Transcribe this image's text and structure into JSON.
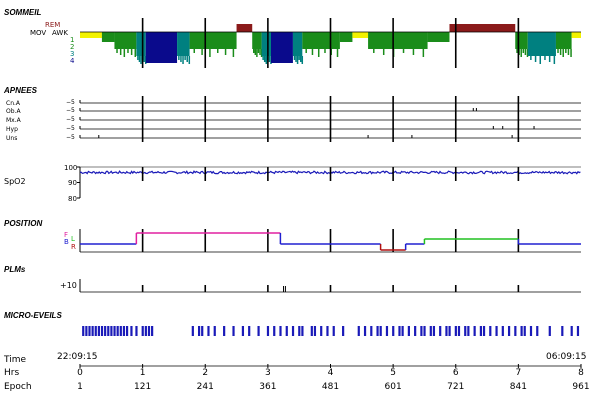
{
  "chart_data": {
    "type": "hypnogram",
    "hours_span": [
      0,
      8
    ],
    "sections": {
      "sleep": {
        "title": "SOMMEIL",
        "stage_labels": [
          "REM",
          "MOV",
          "AWK",
          "1",
          "2",
          "3",
          "4"
        ],
        "stage_colors": {
          "REM": "#8b1a1a",
          "AWK": "#f2f200",
          "1": "#1a8c1a",
          "2": "#1a8c1a",
          "3": "#008080",
          "4": "#0a0a8c"
        },
        "segments": [
          {
            "start": 0.0,
            "end": 0.35,
            "stage": "AWK"
          },
          {
            "start": 0.35,
            "end": 0.55,
            "stage": "1"
          },
          {
            "start": 0.55,
            "end": 0.9,
            "stage": "2"
          },
          {
            "start": 0.9,
            "end": 1.05,
            "stage": "3"
          },
          {
            "start": 1.05,
            "end": 1.55,
            "stage": "4"
          },
          {
            "start": 1.55,
            "end": 1.75,
            "stage": "3"
          },
          {
            "start": 1.75,
            "end": 2.5,
            "stage": "2"
          },
          {
            "start": 2.5,
            "end": 2.75,
            "stage": "REM"
          },
          {
            "start": 2.75,
            "end": 2.9,
            "stage": "2"
          },
          {
            "start": 2.9,
            "end": 3.05,
            "stage": "3"
          },
          {
            "start": 3.05,
            "end": 3.4,
            "stage": "4"
          },
          {
            "start": 3.4,
            "end": 3.55,
            "stage": "3"
          },
          {
            "start": 3.55,
            "end": 4.15,
            "stage": "2"
          },
          {
            "start": 4.15,
            "end": 4.35,
            "stage": "1"
          },
          {
            "start": 4.35,
            "end": 4.6,
            "stage": "AWK"
          },
          {
            "start": 4.6,
            "end": 5.55,
            "stage": "2"
          },
          {
            "start": 5.55,
            "end": 5.9,
            "stage": "1"
          },
          {
            "start": 5.9,
            "end": 6.95,
            "stage": "REM"
          },
          {
            "start": 6.95,
            "end": 7.15,
            "stage": "2"
          },
          {
            "start": 7.15,
            "end": 7.6,
            "stage": "3"
          },
          {
            "start": 7.6,
            "end": 7.85,
            "stage": "2"
          },
          {
            "start": 7.85,
            "end": 8.0,
            "stage": "AWK"
          }
        ]
      },
      "apnea": {
        "title": "APNEES",
        "rows": [
          {
            "label": "Cn.A",
            "marker": "5",
            "events": []
          },
          {
            "label": "Ob.A",
            "marker": "5",
            "events": [
              6.28,
              6.33
            ]
          },
          {
            "label": "Mx.A",
            "marker": "5",
            "events": []
          },
          {
            "label": "Hyp",
            "marker": "5",
            "events": [
              6.6,
              6.75,
              7.25
            ]
          },
          {
            "label": "Uns",
            "marker": "5",
            "events": [
              0.3,
              4.6,
              5.0,
              5.3,
              6.9
            ]
          }
        ]
      },
      "spo2": {
        "label": "SpO2",
        "ticks": [
          "100",
          "90",
          "80"
        ],
        "ylim": [
          80,
          100
        ],
        "baseline": 96.5
      },
      "position": {
        "title": "POSITION",
        "labels": [
          "F",
          "L",
          "B",
          "R"
        ],
        "segments": [
          {
            "start": 0.0,
            "end": 0.9,
            "pos": "B",
            "color": "#2020d0"
          },
          {
            "start": 0.9,
            "end": 3.2,
            "pos": "F",
            "color": "#e020a0"
          },
          {
            "start": 3.2,
            "end": 4.8,
            "pos": "B",
            "color": "#2020d0"
          },
          {
            "start": 4.8,
            "end": 5.2,
            "pos": "R",
            "color": "#b01010"
          },
          {
            "start": 5.2,
            "end": 5.5,
            "pos": "B",
            "color": "#2020d0"
          },
          {
            "start": 5.5,
            "end": 7.0,
            "pos": "L",
            "color": "#20c020"
          },
          {
            "start": 7.0,
            "end": 8.0,
            "pos": "B",
            "color": "#2020d0"
          }
        ]
      },
      "plm": {
        "title": "PLMs",
        "marker": "+10",
        "events": [
          3.25,
          3.28
        ]
      },
      "arousal": {
        "title": "MICRO-EVEILS",
        "events": [
          0.05,
          0.1,
          0.15,
          0.2,
          0.25,
          0.3,
          0.35,
          0.4,
          0.45,
          0.5,
          0.55,
          0.6,
          0.65,
          0.7,
          0.75,
          0.82,
          0.9,
          1.0,
          1.05,
          1.1,
          1.15,
          1.8,
          1.9,
          1.95,
          2.05,
          2.15,
          2.3,
          2.45,
          2.6,
          2.7,
          2.85,
          3.0,
          3.1,
          3.2,
          3.3,
          3.4,
          3.5,
          3.55,
          3.7,
          3.75,
          3.85,
          3.95,
          4.05,
          4.2,
          4.45,
          4.55,
          4.65,
          4.75,
          4.8,
          4.9,
          5.0,
          5.1,
          5.15,
          5.25,
          5.35,
          5.45,
          5.5,
          5.6,
          5.65,
          5.75,
          5.85,
          5.9,
          6.0,
          6.05,
          6.15,
          6.2,
          6.3,
          6.4,
          6.45,
          6.55,
          6.65,
          6.75,
          6.85,
          6.95,
          7.05,
          7.1,
          7.2,
          7.3,
          7.5,
          7.7,
          7.85,
          7.95
        ]
      }
    },
    "axis": {
      "time_label": "Time",
      "start_time": "22:09:15",
      "end_time": "06:09:15",
      "hrs_label": "Hrs",
      "hours": [
        "0",
        "1",
        "2",
        "3",
        "4",
        "5",
        "6",
        "7",
        "8"
      ],
      "epoch_label": "Epoch",
      "epochs": [
        "1",
        "121",
        "241",
        "361",
        "481",
        "601",
        "721",
        "841",
        "961"
      ]
    }
  }
}
